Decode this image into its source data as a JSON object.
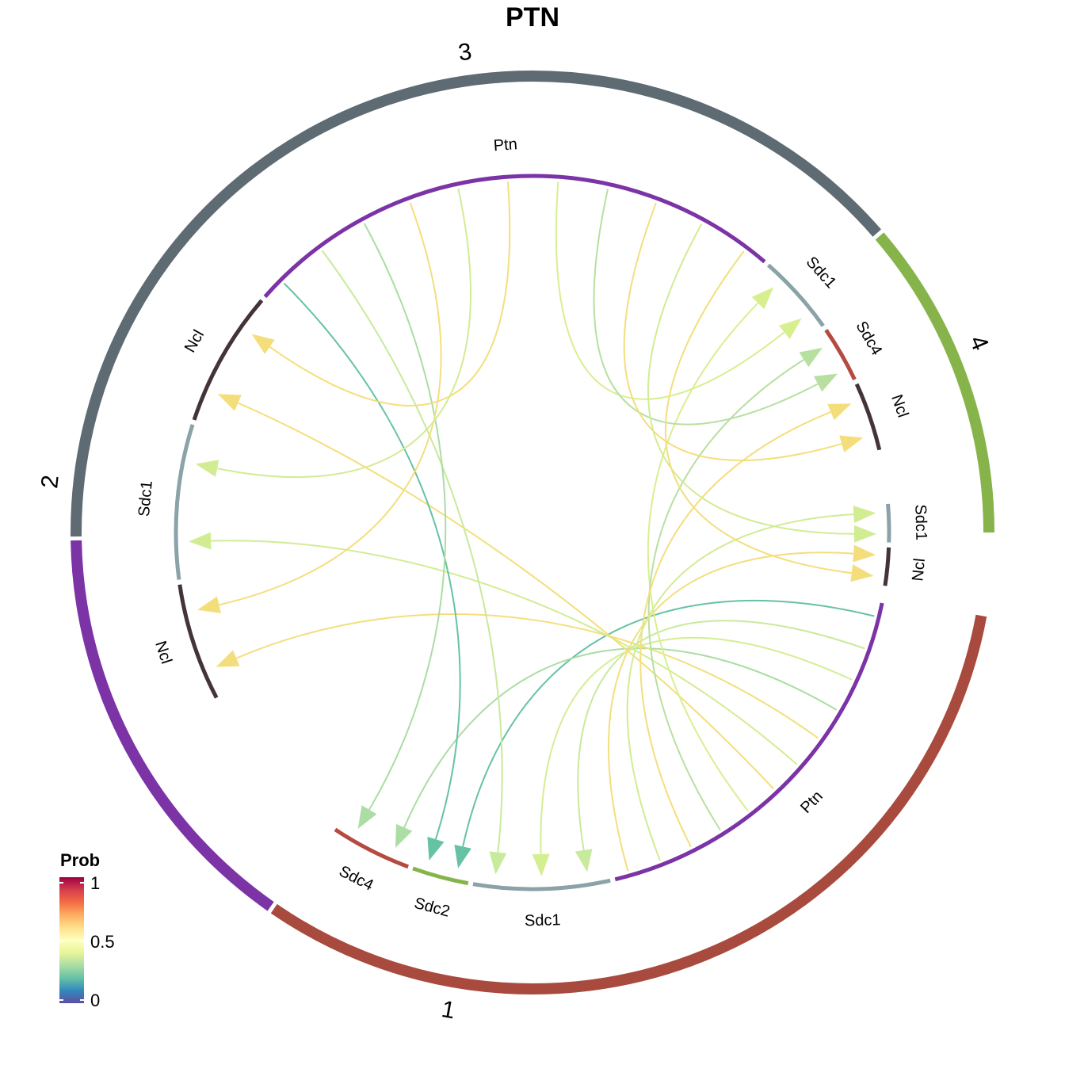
{
  "title": "PTN",
  "legend": {
    "title": "Prob",
    "ticks": [
      "1",
      "0.5",
      "0"
    ],
    "stops": [
      "#5E4FA2",
      "#3288BD",
      "#66C2A5",
      "#ABDDA4",
      "#E6F598",
      "#FFFFBF",
      "#FEE08B",
      "#FDAE61",
      "#F46D43",
      "#D53E4F",
      "#9E0142"
    ]
  },
  "groups": [
    {
      "label": "1",
      "color": "#A94A3E"
    },
    {
      "label": "2",
      "color": "#7B33A6"
    },
    {
      "label": "3",
      "color": "#5E6B73"
    },
    {
      "label": "4",
      "color": "#86B44A"
    }
  ],
  "sectors": [
    {
      "label": "Ptn",
      "color": "#7B33A6",
      "group": "1"
    },
    {
      "label": "Sdc1",
      "color": "#8BA3A8",
      "group": "1"
    },
    {
      "label": "Sdc2",
      "color": "#86B44A",
      "group": "1"
    },
    {
      "label": "Sdc4",
      "color": "#B54B40",
      "group": "1"
    },
    {
      "label": "Ncl",
      "color": "#44343A",
      "group": "2"
    },
    {
      "label": "Sdc1",
      "color": "#8BA3A8",
      "group": "2"
    },
    {
      "label": "Ncl",
      "color": "#44343A",
      "group": "2"
    },
    {
      "label": "Ptn",
      "color": "#7B33A6",
      "group": "3"
    },
    {
      "label": "Sdc1",
      "color": "#8BA3A8",
      "group": "3"
    },
    {
      "label": "Sdc4",
      "color": "#B54B40",
      "group": "3"
    },
    {
      "label": "Ncl",
      "color": "#44343A",
      "group": "3"
    },
    {
      "label": "Sdc1",
      "color": "#8BA3A8",
      "group": "4"
    },
    {
      "label": "Ncl",
      "color": "#44343A",
      "group": "4"
    }
  ],
  "chart_data": {
    "type": "chord",
    "title": "PTN",
    "legend": {
      "title": "Prob",
      "range": [
        0,
        1
      ],
      "position": "bottom-left"
    },
    "links": [
      {
        "from": "1:Ptn",
        "to": "1:Sdc2",
        "color": "#66C2A5"
      },
      {
        "from": "1:Ptn",
        "to": "1:Sdc1",
        "color": "#C8EA9C"
      },
      {
        "from": "1:Ptn",
        "to": "1:Sdc1",
        "color": "#D4EE92"
      },
      {
        "from": "1:Ptn",
        "to": "1:Sdc4",
        "color": "#ABDDA4"
      },
      {
        "from": "1:Ptn",
        "to": "2:Ncl",
        "color": "#F4DE7C"
      },
      {
        "from": "1:Ptn",
        "to": "2:Sdc1",
        "color": "#D2EC94"
      },
      {
        "from": "1:Ptn",
        "to": "2:Ncl",
        "color": "#F4DE7C"
      },
      {
        "from": "1:Ptn",
        "to": "3:Sdc1",
        "color": "#D8EF90"
      },
      {
        "from": "1:Ptn",
        "to": "3:Sdc4",
        "color": "#B7E0A0"
      },
      {
        "from": "1:Ptn",
        "to": "3:Ncl",
        "color": "#F4DE7C"
      },
      {
        "from": "1:Ptn",
        "to": "4:Sdc1",
        "color": "#D2EC94"
      },
      {
        "from": "1:Ptn",
        "to": "4:Ncl",
        "color": "#F4DE7C"
      },
      {
        "from": "3:Ptn",
        "to": "1:Sdc2",
        "color": "#66C2A5"
      },
      {
        "from": "3:Ptn",
        "to": "1:Sdc1",
        "color": "#C8EA9C"
      },
      {
        "from": "3:Ptn",
        "to": "1:Sdc4",
        "color": "#ABDDA4"
      },
      {
        "from": "3:Ptn",
        "to": "2:Ncl",
        "color": "#F4DE7C"
      },
      {
        "from": "3:Ptn",
        "to": "2:Sdc1",
        "color": "#D2EC94"
      },
      {
        "from": "3:Ptn",
        "to": "2:Ncl",
        "color": "#F4DE7C"
      },
      {
        "from": "3:Ptn",
        "to": "3:Sdc1",
        "color": "#D8EF90"
      },
      {
        "from": "3:Ptn",
        "to": "3:Sdc4",
        "color": "#B7E0A0"
      },
      {
        "from": "3:Ptn",
        "to": "3:Ncl",
        "color": "#F4DE7C"
      },
      {
        "from": "3:Ptn",
        "to": "4:Sdc1",
        "color": "#D2EC94"
      },
      {
        "from": "3:Ptn",
        "to": "4:Ncl",
        "color": "#F4DE7C"
      }
    ]
  }
}
